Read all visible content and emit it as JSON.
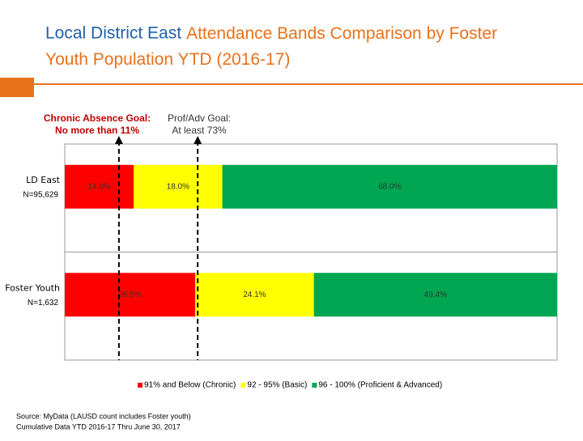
{
  "chart_data": {
    "type": "stacked-bar-horizontal",
    "title": {
      "highlight": "Local District East",
      "rest": "Attendance Bands Comparison by Foster Youth Population YTD (2016-17)"
    },
    "categories": [
      "LD East",
      "Foster Youth"
    ],
    "category_notes": [
      "N=95,629",
      "N=1,632"
    ],
    "series": [
      {
        "name": "91% and Below (Chronic)",
        "color": "#ff0000",
        "values": [
          14.0,
          26.5
        ],
        "value_labels": [
          "14.0%",
          "26.5%"
        ]
      },
      {
        "name": "92 - 95% (Basic)",
        "color": "#ffff00",
        "values": [
          18.0,
          24.1
        ],
        "value_labels": [
          "18.0%",
          "24.1%"
        ]
      },
      {
        "name": "96 - 100% (Proficient & Advanced)",
        "color": "#00a651",
        "values": [
          68.0,
          49.4
        ],
        "value_labels": [
          "68.0%",
          "49.4%"
        ]
      }
    ],
    "xlim": [
      0,
      100
    ],
    "goal_lines": [
      {
        "value": 11,
        "label_lines": [
          "Chronic Absence Goal:",
          "No more than 11%"
        ]
      },
      {
        "value": 27,
        "label_lines": [
          "Prof/Adv Goal:",
          "At least 73%"
        ]
      }
    ],
    "source_lines": [
      "Source: MyData (LAUSD count includes Foster youth)",
      "Cumulative Data YTD 2016-17 Thru June 30, 2017"
    ]
  }
}
